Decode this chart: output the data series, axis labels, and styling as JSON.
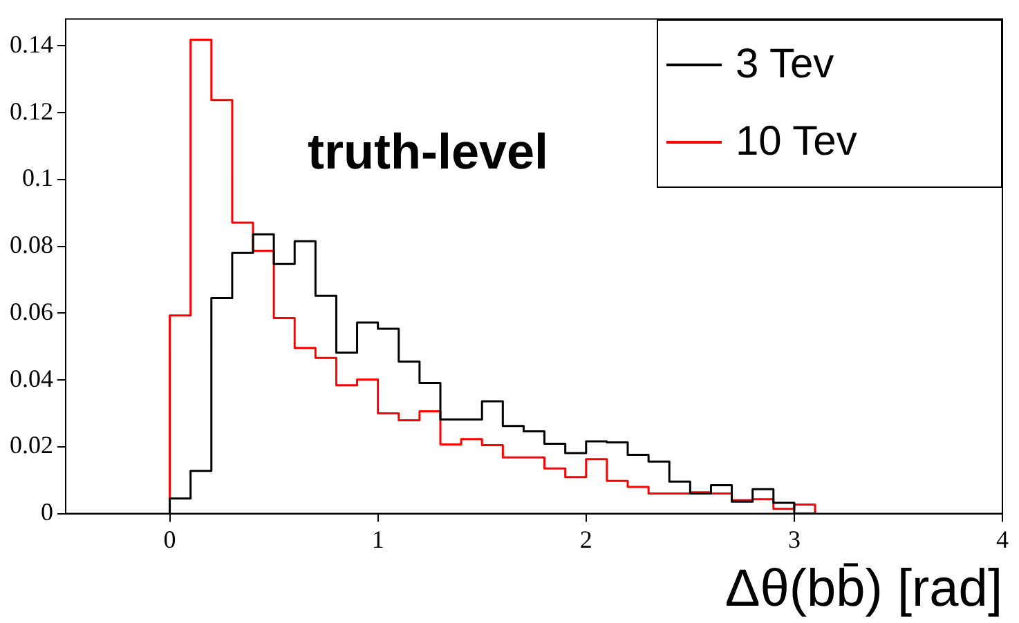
{
  "chart_data": {
    "type": "histogram",
    "xlabel": "Δθ(bb̄) [rad]",
    "annotations": [
      "truth-level"
    ],
    "bins": [
      0,
      0.1,
      0.2,
      0.3,
      0.4,
      0.5,
      0.6,
      0.7,
      0.8,
      0.9,
      1,
      1.1,
      1.2,
      1.3,
      1.4,
      1.5,
      1.6,
      1.7,
      1.8,
      1.9,
      2,
      2.1,
      2.2,
      2.3,
      2.4,
      2.5,
      2.6,
      2.7,
      2.8,
      2.9,
      3,
      3.1
    ],
    "series": [
      {
        "name": "3 Tev",
        "color": "#000000",
        "values": [
          0.0045,
          0.0128,
          0.0645,
          0.078,
          0.0836,
          0.0747,
          0.0815,
          0.0652,
          0.0482,
          0.0572,
          0.0553,
          0.0455,
          0.0391,
          0.0282,
          0.0282,
          0.0336,
          0.0262,
          0.0246,
          0.0209,
          0.0181,
          0.0216,
          0.0213,
          0.0176,
          0.0156,
          0.0096,
          0.006,
          0.0085,
          0.0036,
          0.0073,
          0.0032,
          0
        ]
      },
      {
        "name": "10 Tev",
        "color": "#ff0000",
        "values": [
          0.0593,
          0.1418,
          0.1238,
          0.0871,
          0.0786,
          0.0585,
          0.0496,
          0.0466,
          0.0384,
          0.0401,
          0.03,
          0.0279,
          0.0306,
          0.0207,
          0.0223,
          0.0205,
          0.0168,
          0.0168,
          0.0135,
          0.0109,
          0.0163,
          0.0098,
          0.008,
          0.006,
          0.006,
          0.0064,
          0.006,
          0.004,
          0.0043,
          0.0014,
          0.0027
        ]
      }
    ],
    "xlim": [
      -0.5,
      4
    ],
    "xticks": [
      0,
      1,
      2,
      3,
      4
    ],
    "ylim": [
      0,
      0.148
    ],
    "yticks": [
      0,
      0.02,
      0.04,
      0.06,
      0.08,
      0.1,
      0.12,
      0.14
    ],
    "grid": false,
    "legend": "top right"
  }
}
